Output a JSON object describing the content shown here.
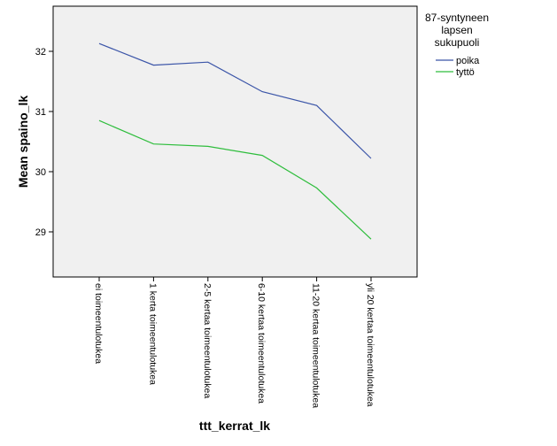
{
  "chart_data": {
    "type": "line",
    "title": "",
    "xlabel": "ttt_kerrat_lk",
    "ylabel": "Mean spaino_lk",
    "categories": [
      "ei toimeentulotukea",
      "1 kerta toimeentulotukea",
      "2-5 kertaa toimeentulotukea",
      "6-10 kertaa toimeentulotukea",
      "11-20 kertaa toimeentulotukea",
      "yli 20 kertaa toimeentulotukea"
    ],
    "series": [
      {
        "name": "poika",
        "color": "#3b55a8",
        "values": [
          32.13,
          31.77,
          31.82,
          31.33,
          31.1,
          30.22
        ]
      },
      {
        "name": "tyttö",
        "color": "#2ebd3c",
        "values": [
          30.85,
          30.46,
          30.42,
          30.27,
          29.73,
          28.88
        ]
      }
    ],
    "ylim": [
      28.25,
      32.75
    ],
    "yticks": [
      29,
      30,
      31,
      32
    ],
    "grid": false,
    "legend": {
      "title_lines": [
        "87-syntyneen",
        "lapsen",
        "sukupuoli"
      ],
      "position": "right"
    }
  }
}
